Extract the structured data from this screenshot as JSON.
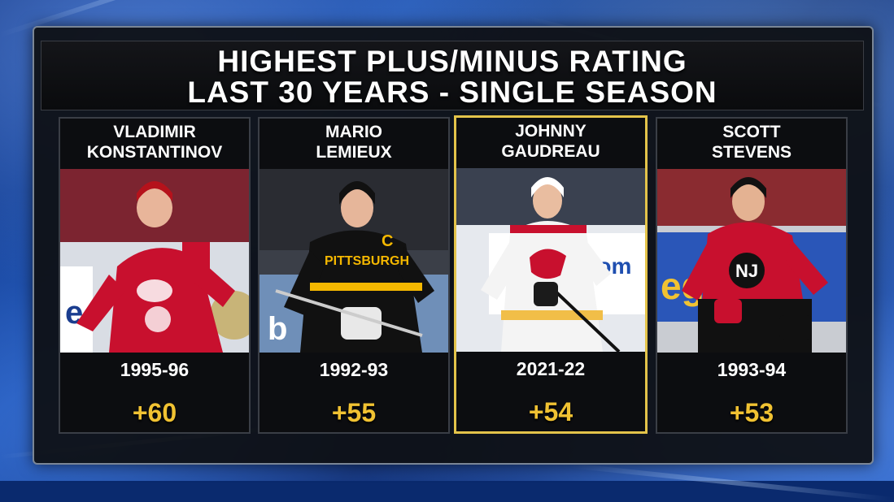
{
  "title": {
    "line1": "HIGHEST PLUS/MINUS RATING",
    "line2": "LAST 30 YEARS - SINGLE SEASON"
  },
  "players": [
    {
      "first": "VLADIMIR",
      "last": "KONSTANTINOV",
      "season": "1995-96",
      "rating": "+60",
      "jersey_color": "#c8102e",
      "highlighted": false
    },
    {
      "first": "MARIO",
      "last": "LEMIEUX",
      "season": "1992-93",
      "rating": "+55",
      "jersey_color": "#111111",
      "highlighted": false
    },
    {
      "first": "JOHNNY",
      "last": "GAUDREAU",
      "season": "2021-22",
      "rating": "+54",
      "jersey_color": "#f4f4f4",
      "highlighted": true
    },
    {
      "first": "SCOTT",
      "last": "STEVENS",
      "season": "1993-94",
      "rating": "+53",
      "jersey_color": "#c8102e",
      "highlighted": false
    }
  ],
  "colors": {
    "rating_gold": "#f1c232",
    "highlight_border": "#e3c34a"
  }
}
